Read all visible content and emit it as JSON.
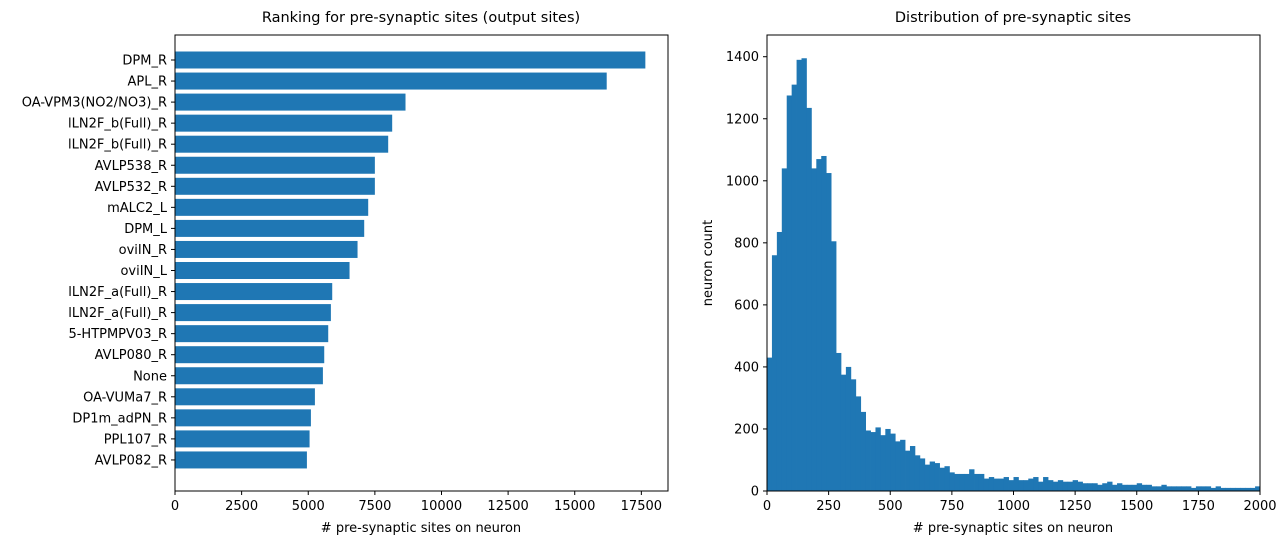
{
  "chart_data": [
    {
      "type": "bar",
      "orientation": "horizontal",
      "title": "Ranking for pre-synaptic sites (output sites)",
      "xlabel": "# pre-synaptic sites on neuron",
      "ylabel": "",
      "xlim": [
        0,
        18500
      ],
      "xticks": [
        0,
        2500,
        5000,
        7500,
        10000,
        12500,
        15000,
        17500
      ],
      "grid": false,
      "color": "#1f77b4",
      "categories": [
        "DPM_R",
        "APL_R",
        "OA-VPM3(NO2/NO3)_R",
        "lLN2F_b(Full)_R",
        "lLN2F_b(Full)_R",
        "AVLP538_R",
        "AVLP532_R",
        "mALC2_L",
        "DPM_L",
        "oviIN_R",
        "oviIN_L",
        "lLN2F_a(Full)_R",
        "lLN2F_a(Full)_R",
        "5-HTPMPV03_R",
        "AVLP080_R",
        "None",
        "OA-VUMa7_R",
        "DP1m_adPN_R",
        "PPL107_R",
        "AVLP082_R"
      ],
      "values": [
        17650,
        16200,
        8650,
        8150,
        8000,
        7500,
        7500,
        7250,
        7100,
        6850,
        6550,
        5900,
        5850,
        5750,
        5600,
        5550,
        5250,
        5100,
        5050,
        4950
      ]
    },
    {
      "type": "bar",
      "subtype": "histogram",
      "title": "Distribution of pre-synaptic sites",
      "xlabel": "# pre-synaptic sites on neuron",
      "ylabel": "neuron count",
      "xlim": [
        0,
        2000
      ],
      "ylim": [
        0,
        1470
      ],
      "xticks": [
        0,
        250,
        500,
        750,
        1000,
        1250,
        1500,
        1750,
        2000
      ],
      "yticks": [
        0,
        200,
        400,
        600,
        800,
        1000,
        1200,
        1400
      ],
      "grid": false,
      "color": "#1f77b4",
      "bin_width": 20,
      "counts": [
        430,
        760,
        835,
        1040,
        1275,
        1310,
        1390,
        1395,
        1235,
        1040,
        1070,
        1080,
        1025,
        805,
        445,
        375,
        400,
        360,
        305,
        255,
        195,
        190,
        205,
        180,
        200,
        185,
        160,
        165,
        130,
        145,
        115,
        105,
        85,
        95,
        90,
        75,
        80,
        60,
        55,
        55,
        55,
        70,
        55,
        55,
        40,
        45,
        40,
        40,
        45,
        35,
        45,
        35,
        35,
        40,
        45,
        30,
        45,
        35,
        30,
        35,
        30,
        30,
        35,
        30,
        25,
        25,
        25,
        20,
        25,
        30,
        20,
        25,
        20,
        20,
        20,
        25,
        20,
        20,
        15,
        15,
        20,
        15,
        15,
        15,
        15,
        15,
        10,
        15,
        15,
        15,
        10,
        15,
        10,
        10,
        10,
        10,
        10,
        10,
        10,
        15
      ]
    }
  ]
}
